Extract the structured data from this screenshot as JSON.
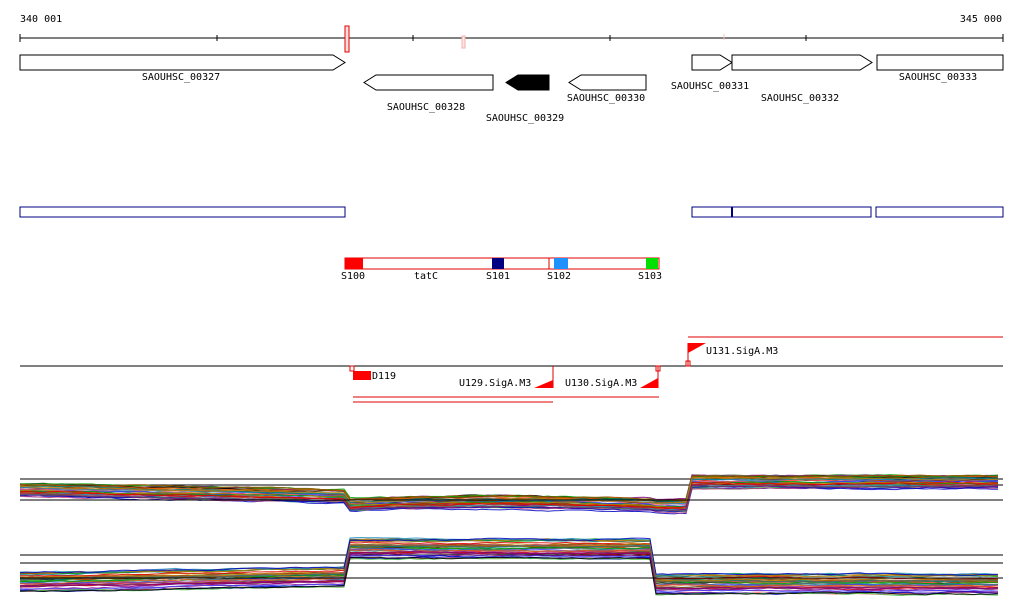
{
  "ruler": {
    "start_label": "340 001",
    "end_label": "345 000"
  },
  "genes": [
    {
      "id": "g327",
      "label": "SAOUHSC_00327",
      "strand": "+",
      "highlight": false
    },
    {
      "id": "g328",
      "label": "SAOUHSC_00328",
      "strand": "-",
      "highlight": false
    },
    {
      "id": "g329",
      "label": "SAOUHSC_00329",
      "strand": "-",
      "highlight": true
    },
    {
      "id": "g330",
      "label": "SAOUHSC_00330",
      "strand": "-",
      "highlight": false
    },
    {
      "id": "g331",
      "label": "SAOUHSC_00331",
      "strand": "+",
      "highlight": false
    },
    {
      "id": "g332",
      "label": "SAOUHSC_00332",
      "strand": "+",
      "highlight": false
    },
    {
      "id": "g333",
      "label": "SAOUHSC_00333",
      "strand": "+",
      "highlight": false
    }
  ],
  "segments": {
    "items": [
      {
        "label": "S100",
        "color": "#ff0000"
      },
      {
        "label": "S101",
        "color": "#000080"
      },
      {
        "label": "S102",
        "color": "#1e90ff"
      },
      {
        "label": "S103",
        "color": "#00e000"
      }
    ],
    "gene_label": "tatC",
    "bar_color": "#e00000"
  },
  "promoters": [
    {
      "label": "D119"
    },
    {
      "label": "U129.SigA.M3"
    },
    {
      "label": "U130.SigA.M3"
    },
    {
      "label": "U131.SigA.M3"
    }
  ],
  "colors": {
    "gene_outline": "#000000",
    "gene_highlight": "#000000",
    "operon_outline": "#000080",
    "transcript": "#e00000",
    "accent_red": "#ff0000"
  },
  "expression_panels": [
    {
      "name": "expression-panel-1"
    },
    {
      "name": "expression-panel-2"
    }
  ]
}
